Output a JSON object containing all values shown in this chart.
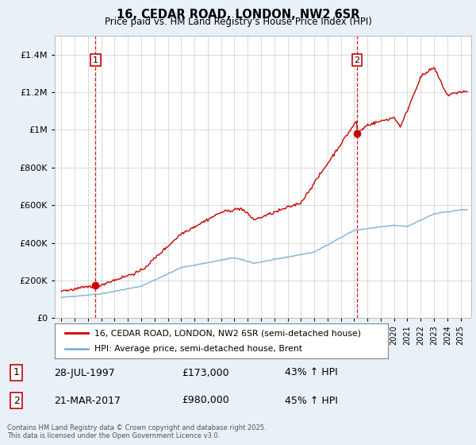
{
  "title_line1": "16, CEDAR ROAD, LONDON, NW2 6SR",
  "title_line2": "Price paid vs. HM Land Registry's House Price Index (HPI)",
  "legend_label1": "16, CEDAR ROAD, LONDON, NW2 6SR (semi-detached house)",
  "legend_label2": "HPI: Average price, semi-detached house, Brent",
  "annotation1_label": "1",
  "annotation1_date": "28-JUL-1997",
  "annotation1_price": "£173,000",
  "annotation1_hpi": "43% ↑ HPI",
  "annotation2_label": "2",
  "annotation2_date": "21-MAR-2017",
  "annotation2_price": "£980,000",
  "annotation2_hpi": "45% ↑ HPI",
  "footnote": "Contains HM Land Registry data © Crown copyright and database right 2025.\nThis data is licensed under the Open Government Licence v3.0.",
  "property_color": "#cc0000",
  "hpi_color": "#7fb3d3",
  "background_color": "#e8f0f8",
  "plot_bg_color": "#ffffff",
  "grid_color": "#cccccc",
  "dashed_line_color": "#cc0000",
  "ylim": [
    0,
    1500000
  ],
  "yticks": [
    0,
    200000,
    400000,
    600000,
    800000,
    1000000,
    1200000,
    1400000
  ],
  "ytick_labels": [
    "£0",
    "£200K",
    "£400K",
    "£600K",
    "£800K",
    "£1M",
    "£1.2M",
    "£1.4M"
  ],
  "xmin": 1994.5,
  "xmax": 2025.8,
  "marker1_x": 1997.57,
  "marker1_y": 173000,
  "marker2_x": 2017.22,
  "marker2_y": 980000
}
